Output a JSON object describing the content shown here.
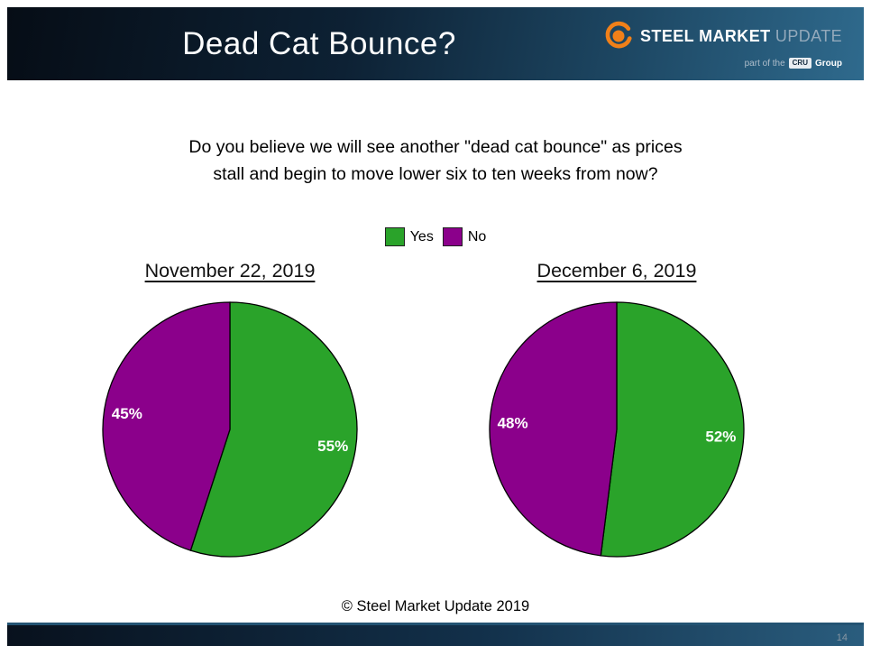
{
  "header": {
    "title": "Dead Cat Bounce?",
    "logo": {
      "word1": "STEEL",
      "word2": "MARKET",
      "word3": "UPDATE",
      "tagline_prefix": "part of the",
      "tagline_badge": "CRU",
      "tagline_suffix": "Group"
    }
  },
  "question": {
    "line1": "Do you believe we will see another \"dead cat bounce\" as prices",
    "line2": "stall and begin to move lower six to ten weeks from now?"
  },
  "legend": {
    "items": [
      {
        "label": "Yes",
        "color": "#2aa32a"
      },
      {
        "label": "No",
        "color": "#8b008b"
      }
    ]
  },
  "chart_data": [
    {
      "type": "pie",
      "title": "November 22, 2019",
      "labels": [
        "Yes",
        "No"
      ],
      "values": [
        55,
        45
      ],
      "display_labels": [
        "55%",
        "45%"
      ],
      "colors": [
        "#2aa32a",
        "#8b008b"
      ],
      "start_angle_deg": 0,
      "direction": "clockwise",
      "legend_position": "top-center"
    },
    {
      "type": "pie",
      "title": "December 6, 2019",
      "labels": [
        "Yes",
        "No"
      ],
      "values": [
        52,
        48
      ],
      "display_labels": [
        "52%",
        "48%"
      ],
      "colors": [
        "#2aa32a",
        "#8b008b"
      ],
      "start_angle_deg": 0,
      "direction": "clockwise",
      "legend_position": "top-center"
    }
  ],
  "footer": {
    "copyright": "© Steel Market Update 2019"
  },
  "page_number": "14",
  "colors": {
    "header_gradient_start": "#060d16",
    "header_gradient_end": "#2f6a8d",
    "yes_green": "#2aa32a",
    "no_purple": "#8b008b",
    "logo_orange": "#f08019"
  }
}
